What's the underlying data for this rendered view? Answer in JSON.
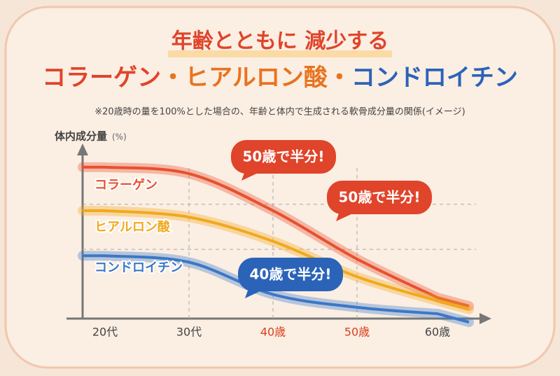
{
  "chart_data": {
    "type": "line",
    "title": "年齢とともに 減少する",
    "title_parts": [
      {
        "text": "コラーゲン",
        "color": "#e0442a"
      },
      {
        "text": "・ヒアルロン酸・",
        "color": "#e8731f"
      },
      {
        "text": "コンドロイチン",
        "color": "#2b63b8"
      }
    ],
    "subtitle": "※20歳時の量を100%とした場合の、年齢と体内で生成される軟骨成分量の関係(イメージ)",
    "y_label": "体内成分量",
    "y_unit": "(%)",
    "categories": [
      "20代",
      "30代",
      "40歳",
      "50歳",
      "60歳"
    ],
    "category_colors": [
      "#444444",
      "#444444",
      "#d9401e",
      "#d9401e",
      "#444444"
    ],
    "ylim": [
      0,
      100
    ],
    "ygrid": [
      71,
      43
    ],
    "grid": true,
    "series": [
      {
        "name": "コラーゲン",
        "color": "#e8502e",
        "values": [
          94,
          90,
          67,
          37,
          13
        ]
      },
      {
        "name": "ヒアルロン酸",
        "color": "#f2a81d",
        "values": [
          67,
          63,
          48,
          26,
          11
        ]
      },
      {
        "name": "コンドロイチン",
        "color": "#3a78c8",
        "values": [
          39,
          35,
          15,
          7,
          3
        ]
      }
    ],
    "annotations": [
      {
        "text": "50歳で半分!",
        "color": "#e0442a"
      },
      {
        "text": "50歳で半分!",
        "color": "#e0442a"
      },
      {
        "text": "40歳で半分!",
        "color": "#2b63b8"
      }
    ]
  }
}
